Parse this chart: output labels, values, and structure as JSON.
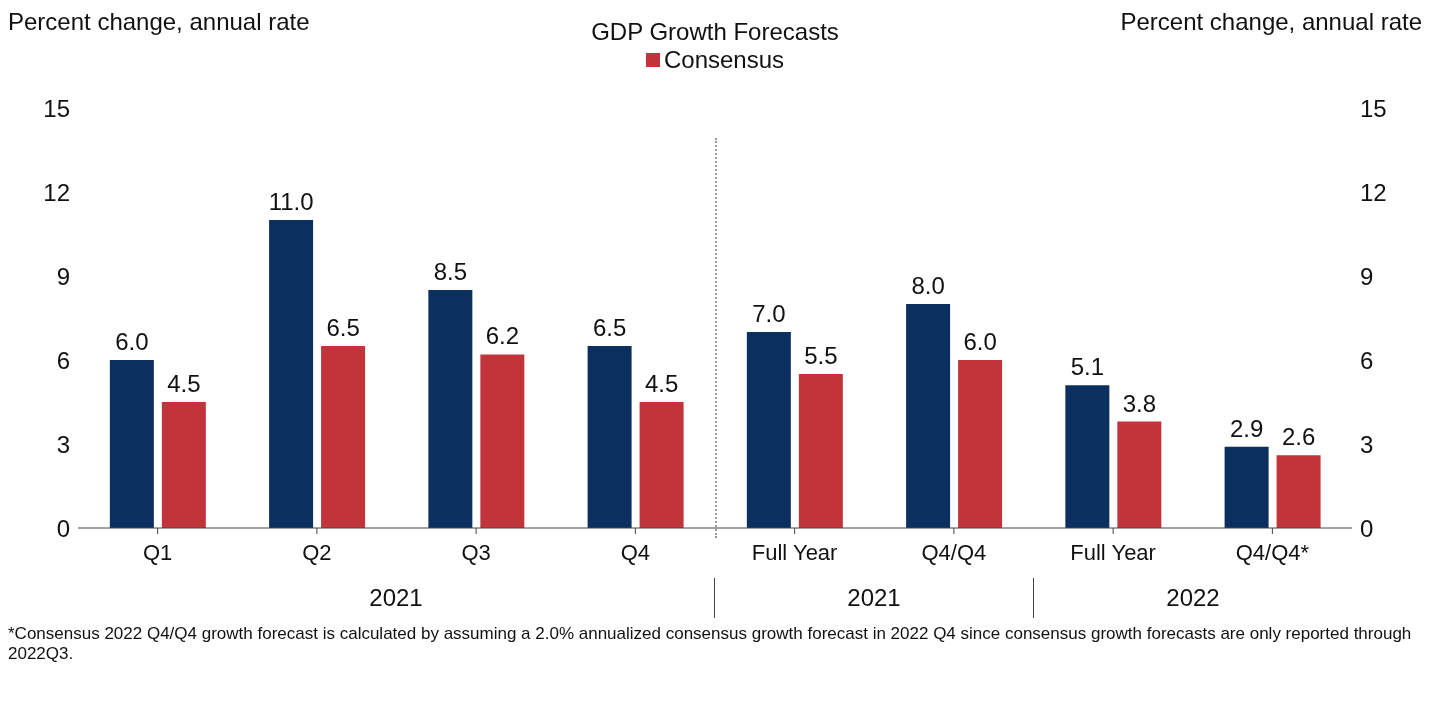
{
  "chart_data": {
    "type": "bar",
    "title": "GDP Growth Forecasts",
    "ylabel": "Percent change, annual rate",
    "y2label": "Percent change, annual rate",
    "categories": [
      "Q1",
      "Q2",
      "Q3",
      "Q4",
      "Full Year",
      "Q4/Q4",
      "Full Year",
      "Q4/Q4*"
    ],
    "series": [
      {
        "color": "#0b2f5e",
        "values": [
          6.0,
          11.0,
          8.5,
          6.5,
          7.0,
          8.0,
          5.1,
          2.9
        ],
        "value_labels": [
          "6.0",
          "11.0",
          "8.5",
          "6.5",
          "7.0",
          "8.0",
          "5.1",
          "2.9"
        ]
      },
      {
        "name": "Consensus",
        "color": "#c3343a",
        "values": [
          4.5,
          6.5,
          6.2,
          4.5,
          5.5,
          6.0,
          3.8,
          2.6
        ],
        "value_labels": [
          "4.5",
          "6.5",
          "6.2",
          "4.5",
          "5.5",
          "6.0",
          "3.8",
          "2.6"
        ]
      }
    ],
    "ylim": [
      0,
      15
    ],
    "yticks": [
      0,
      3,
      6,
      9,
      12,
      15
    ],
    "y2lim": [
      0,
      15
    ],
    "y2ticks": [
      0,
      3,
      6,
      9,
      12,
      15
    ],
    "legend": "top",
    "grid": false,
    "annotations": [
      "2021",
      "2021",
      "2022",
      "*Consensus 2022 Q4/Q4 growth forecast is calculated by assuming a 2.0% annualized consensus growth forecast in 2022 Q4 since consensus growth forecasts are only reported through 2022Q3."
    ]
  }
}
